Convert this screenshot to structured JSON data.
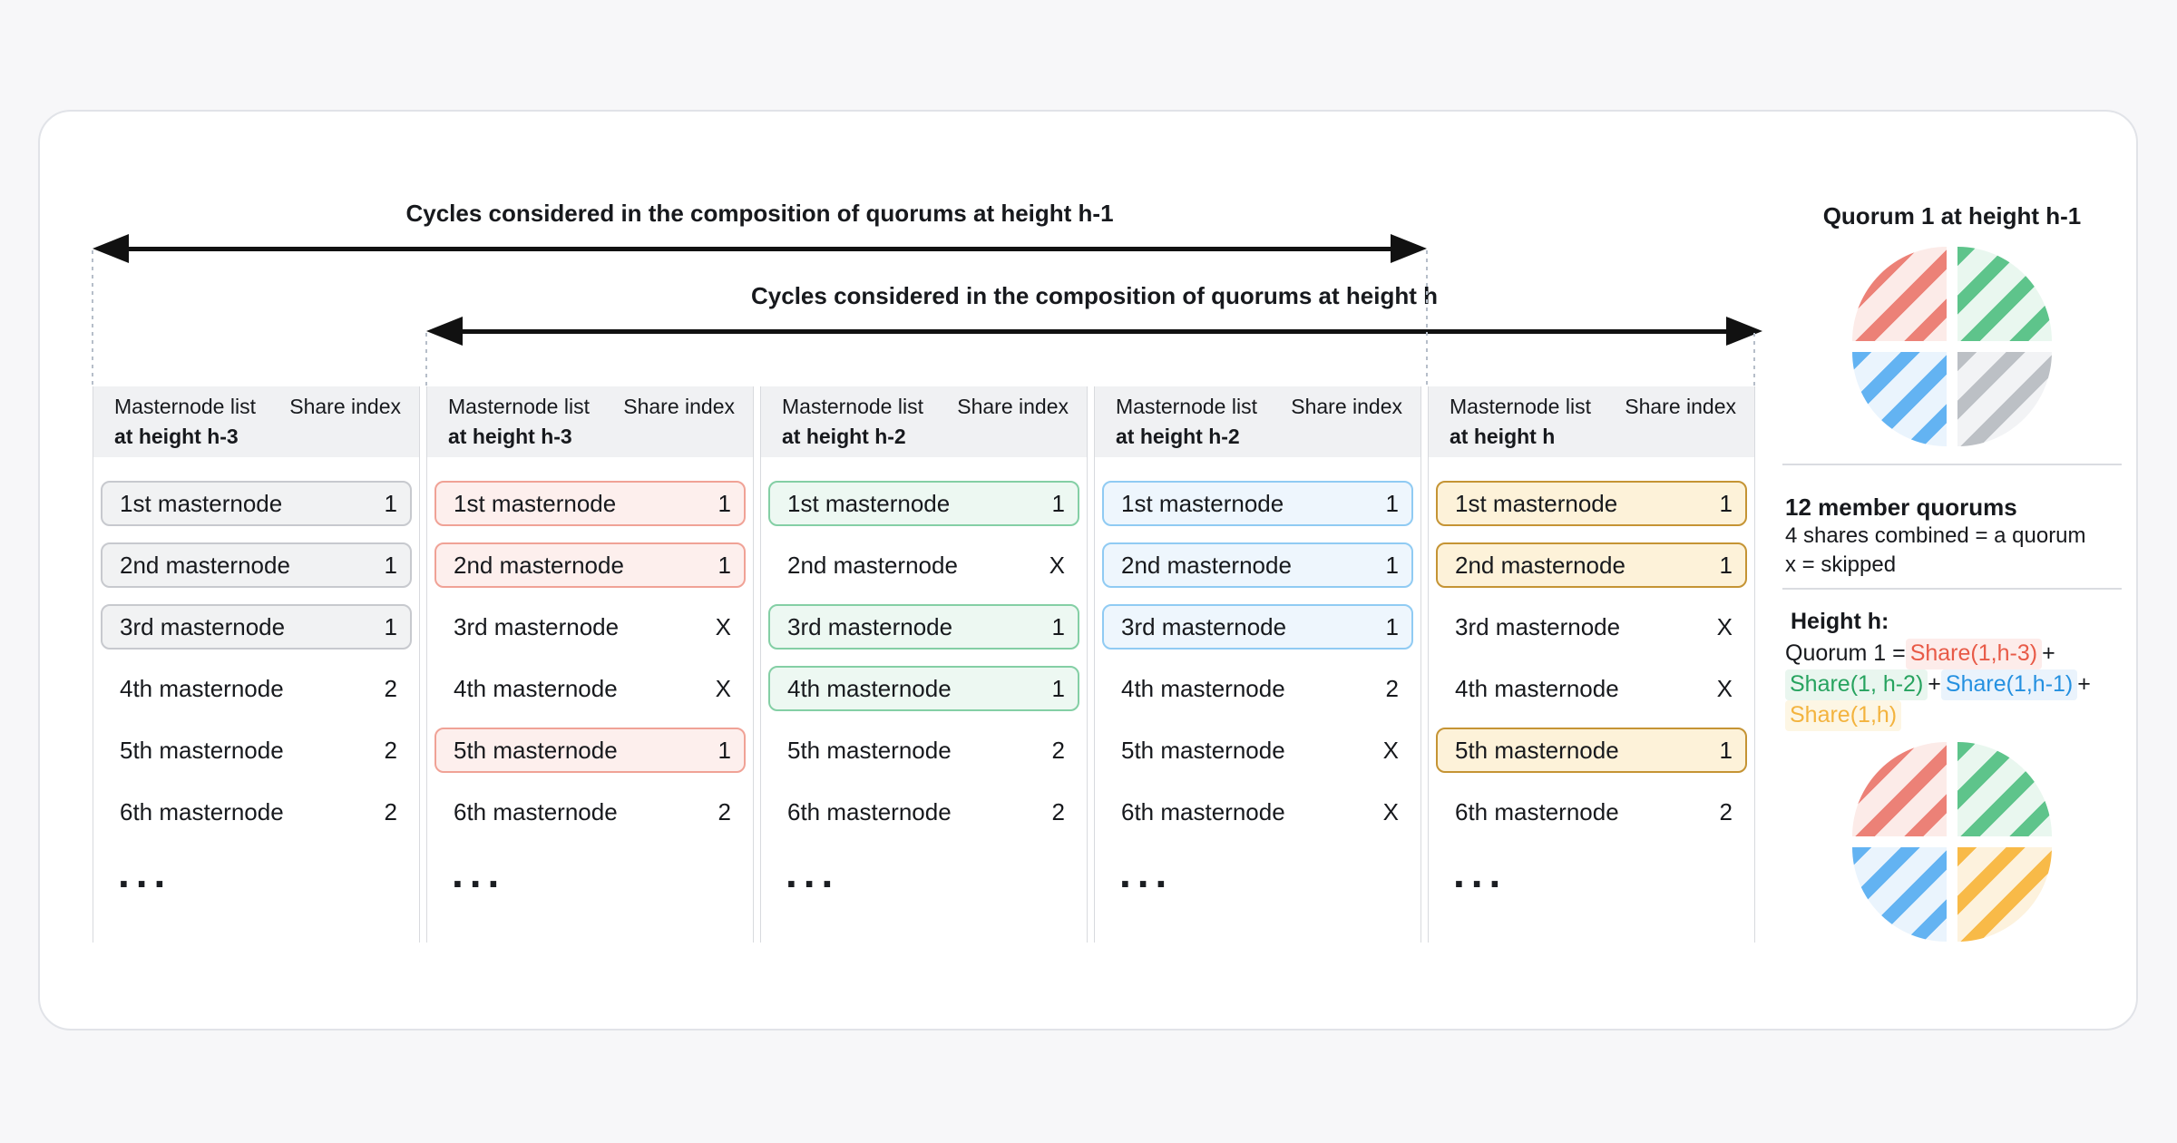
{
  "page": {
    "background": "#f7f7f9",
    "card_background": "#ffffff",
    "card_border": "#e1e3e8"
  },
  "titles": {
    "arrow_h1": "Cycles considered in the composition of quorums at height h-1",
    "arrow_h": "Cycles considered in the composition of quorums at height h"
  },
  "table": {
    "ellipsis": "...",
    "columns": [
      {
        "theme": "gray",
        "header": {
          "list_label": "Masternode list",
          "height_label": "at height h-3",
          "share_label": "Share index"
        },
        "rows": [
          {
            "label": "1st masternode",
            "value": "1",
            "boxed": true
          },
          {
            "label": "2nd masternode",
            "value": "1",
            "boxed": true
          },
          {
            "label": "3rd masternode",
            "value": "1",
            "boxed": true
          },
          {
            "label": "4th masternode",
            "value": "2",
            "boxed": false
          },
          {
            "label": "5th masternode",
            "value": "2",
            "boxed": false
          },
          {
            "label": "6th masternode",
            "value": "2",
            "boxed": false
          }
        ]
      },
      {
        "theme": "red",
        "header": {
          "list_label": "Masternode list",
          "height_label": "at height h-3",
          "share_label": "Share index"
        },
        "rows": [
          {
            "label": "1st masternode",
            "value": "1",
            "boxed": true
          },
          {
            "label": "2nd masternode",
            "value": "1",
            "boxed": true
          },
          {
            "label": "3rd masternode",
            "value": "X",
            "boxed": false
          },
          {
            "label": "4th masternode",
            "value": "X",
            "boxed": false
          },
          {
            "label": "5th masternode",
            "value": "1",
            "boxed": true
          },
          {
            "label": "6th masternode",
            "value": "2",
            "boxed": false
          }
        ]
      },
      {
        "theme": "green",
        "header": {
          "list_label": "Masternode list",
          "height_label": "at height h-2",
          "share_label": "Share index"
        },
        "rows": [
          {
            "label": "1st masternode",
            "value": "1",
            "boxed": true
          },
          {
            "label": "2nd masternode",
            "value": "X",
            "boxed": false
          },
          {
            "label": "3rd masternode",
            "value": "1",
            "boxed": true
          },
          {
            "label": "4th masternode",
            "value": "1",
            "boxed": true
          },
          {
            "label": "5th masternode",
            "value": "2",
            "boxed": false
          },
          {
            "label": "6th masternode",
            "value": "2",
            "boxed": false
          }
        ]
      },
      {
        "theme": "blue",
        "header": {
          "list_label": "Masternode list",
          "height_label": "at height h-2",
          "share_label": "Share index"
        },
        "rows": [
          {
            "label": "1st masternode",
            "value": "1",
            "boxed": true
          },
          {
            "label": "2nd masternode",
            "value": "1",
            "boxed": true
          },
          {
            "label": "3rd masternode",
            "value": "1",
            "boxed": true
          },
          {
            "label": "4th masternode",
            "value": "2",
            "boxed": false
          },
          {
            "label": "5th masternode",
            "value": "X",
            "boxed": false
          },
          {
            "label": "6th masternode",
            "value": "X",
            "boxed": false
          }
        ]
      },
      {
        "theme": "yellow",
        "header": {
          "list_label": "Masternode list",
          "height_label": "at height h",
          "share_label": "Share index"
        },
        "rows": [
          {
            "label": "1st masternode",
            "value": "1",
            "boxed": true
          },
          {
            "label": "2nd masternode",
            "value": "1",
            "boxed": true
          },
          {
            "label": "3rd masternode",
            "value": "X",
            "boxed": false
          },
          {
            "label": "4th masternode",
            "value": "X",
            "boxed": false
          },
          {
            "label": "5th masternode",
            "value": "1",
            "boxed": true
          },
          {
            "label": "6th masternode",
            "value": "2",
            "boxed": false
          }
        ]
      }
    ]
  },
  "sidebar": {
    "quorum_title": "Quorum 1 at height h-1",
    "pie1_quadrants": [
      "red",
      "green",
      "blue",
      "gray"
    ],
    "legend": {
      "line1": "12 member quorums",
      "line2": "4 shares combined = a quorum",
      "line3": "x = skipped"
    },
    "height_heading": "Height h:",
    "equation_lines": [
      [
        {
          "t": "Quorum 1 = ",
          "c": "plain"
        },
        {
          "t": "Share(1,h-3)",
          "c": "red"
        },
        {
          "t": " +",
          "c": "plain"
        }
      ],
      [
        {
          "t": "Share(1, h-2)",
          "c": "green"
        },
        {
          "t": " + ",
          "c": "plain"
        },
        {
          "t": "Share(1,h-1)",
          "c": "blue"
        },
        {
          "t": " +",
          "c": "plain"
        }
      ],
      [
        {
          "t": "Share(1,h)",
          "c": "yellow"
        }
      ]
    ],
    "pie2_quadrants": [
      "red",
      "green",
      "blue",
      "yellow"
    ]
  },
  "colors": {
    "arrow": "#111111",
    "dotted_line": "#b6bec9",
    "divider": "#dadce1",
    "header_band": "#f0f1f3",
    "column_border": "#d8dade",
    "text": "#15171a",
    "box_themes": {
      "gray": {
        "border": "#c7c9ce",
        "bg": "#f1f2f3"
      },
      "red": {
        "border": "#f0a296",
        "bg": "#fdefed"
      },
      "green": {
        "border": "#84cfa5",
        "bg": "#edf8f2"
      },
      "blue": {
        "border": "#90cbf3",
        "bg": "#eef6fd"
      },
      "yellow": {
        "border": "#c59434",
        "bg": "#fdf2d9"
      }
    },
    "pie": {
      "red": {
        "stripe": "#ec8177",
        "bg": "#fcebe8"
      },
      "green": {
        "stripe": "#5ec48b",
        "bg": "#e9f7ef"
      },
      "blue": {
        "stripe": "#63b3f2",
        "bg": "#eaf4fd"
      },
      "gray": {
        "stripe": "#bcc0c5",
        "bg": "#f2f3f5"
      },
      "yellow": {
        "stripe": "#f8ba48",
        "bg": "#fdf2dd"
      }
    },
    "equation": {
      "red": {
        "text": "#e85a47",
        "bg": "#fdecea"
      },
      "green": {
        "text": "#27a35f",
        "bg": "#e9f6ef"
      },
      "blue": {
        "text": "#2490e0",
        "bg": "#eaf3fc"
      },
      "yellow": {
        "text": "#f3b33e",
        "bg": "#fdf6e4"
      }
    }
  }
}
